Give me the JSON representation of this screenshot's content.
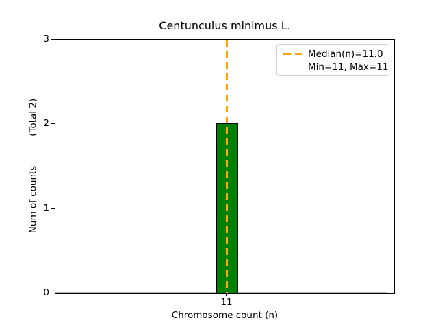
{
  "chart_data": {
    "type": "bar",
    "title": "Centunculus minimus L.",
    "xlabel": "Chromosome count (n)",
    "ylabel": "Num of counts          (Total 2)",
    "categories": [
      "11"
    ],
    "values": [
      2
    ],
    "total_counts": 2,
    "ylim": [
      0,
      3
    ],
    "yticks": [
      0,
      1,
      2,
      3
    ],
    "ytick_labels": [
      "0",
      "1",
      "2",
      "3"
    ],
    "xtick_labels": [
      "11"
    ],
    "grid": false,
    "median_line": {
      "x": 11.0,
      "style": "dashed",
      "orientation": "vertical"
    },
    "stats": {
      "median": 11.0,
      "min": 11,
      "max": 11
    },
    "legend": {
      "position": "upper right",
      "entries": [
        {
          "label": "Median(n)=11.0",
          "marker": "orange-dashed-line"
        },
        {
          "label": "Min=11, Max=11",
          "marker": "none"
        }
      ]
    },
    "colors": {
      "bar": "#008000",
      "bar_edge": "#000000",
      "median": "#FFA500",
      "zero_line": "#b0b0b0",
      "legend_border": "#cccccc"
    }
  }
}
